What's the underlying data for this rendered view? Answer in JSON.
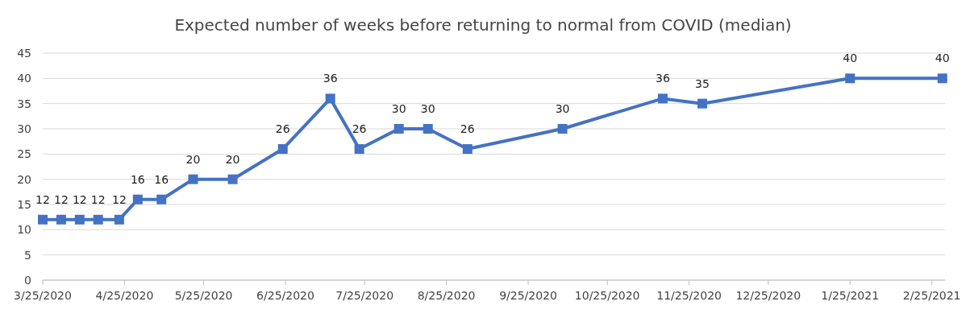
{
  "chart_data": {
    "type": "line",
    "title": "Expected number of weeks before returning to normal from COVID (median)",
    "x": [
      "2020-03-25",
      "2020-04-01",
      "2020-04-08",
      "2020-04-15",
      "2020-04-23",
      "2020-04-30",
      "2020-05-09",
      "2020-05-21",
      "2020-06-05",
      "2020-06-24",
      "2020-07-12",
      "2020-07-23",
      "2020-08-07",
      "2020-08-18",
      "2020-09-02",
      "2020-10-08",
      "2020-11-15",
      "2020-11-30",
      "2021-01-25",
      "2021-03-01"
    ],
    "series": [
      {
        "color": "#4472c4",
        "values": [
          12,
          12,
          12,
          12,
          12,
          16,
          16,
          20,
          20,
          26,
          36,
          26,
          30,
          30,
          26,
          30,
          36,
          35,
          40,
          40
        ]
      }
    ],
    "xlim": [
      "2020-03-25",
      "2021-03-02"
    ],
    "xticks": [
      {
        "value": "2020-03-25",
        "label": "3/25/2020"
      },
      {
        "value": "2020-04-25",
        "label": "4/25/2020"
      },
      {
        "value": "2020-05-25",
        "label": "5/25/2020"
      },
      {
        "value": "2020-06-25",
        "label": "6/25/2020"
      },
      {
        "value": "2020-07-25",
        "label": "7/25/2020"
      },
      {
        "value": "2020-08-25",
        "label": "8/25/2020"
      },
      {
        "value": "2020-09-25",
        "label": "9/25/2020"
      },
      {
        "value": "2020-10-25",
        "label": "10/25/2020"
      },
      {
        "value": "2020-11-25",
        "label": "11/25/2020"
      },
      {
        "value": "2020-12-25",
        "label": "12/25/2020"
      },
      {
        "value": "2021-01-25",
        "label": "1/25/2021"
      },
      {
        "value": "2021-02-25",
        "label": "2/25/2021"
      }
    ],
    "ylim": [
      0,
      45
    ],
    "yticks": [
      0,
      5,
      10,
      15,
      20,
      25,
      30,
      35,
      40,
      45
    ],
    "grid": "y",
    "marker": "square",
    "line_style": "solid",
    "data_labels": true
  }
}
